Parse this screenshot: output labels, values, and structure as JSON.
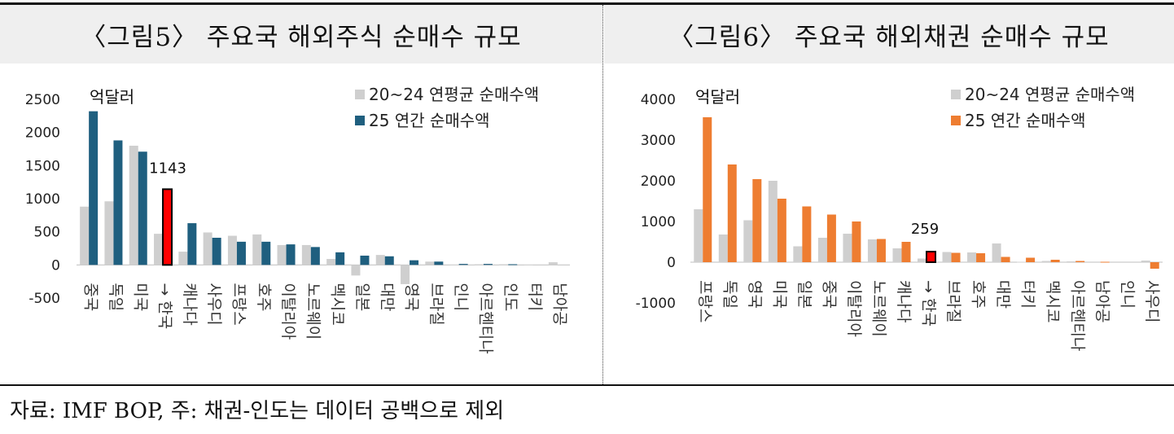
{
  "charts": {
    "left": {
      "title": "〈그림5〉 주요국 해외주식 순매수 규모"
    },
    "right": {
      "title": "〈그림6〉 주요국 해외채권 순매수 규모"
    }
  },
  "footer": {
    "source": "자료: IMF BOP, 주: 채권-인도는 데이터 공백으로 제외"
  },
  "colors": {
    "avg": "#cfcfcf",
    "equity": "#1f5f7f",
    "bond": "#ee7d31",
    "highlight": "#ff0000"
  },
  "chart_data": [
    {
      "type": "bar",
      "title": "〈그림5〉 주요국 해외주식 순매수 규모",
      "unit": "억달러",
      "ylim": [
        -500,
        2500
      ],
      "yticks": [
        -500,
        0,
        500,
        1000,
        1500,
        2000,
        2500
      ],
      "categories": [
        "중국",
        "독일",
        "미국",
        "→ 한국",
        "캐나다",
        "사우디",
        "프랑스",
        "호주",
        "이탈리아",
        "노르웨이",
        "멕시코",
        "일본",
        "대만",
        "영국",
        "브라질",
        "인니",
        "아르헨티나",
        "인도",
        "터키",
        "남아공"
      ],
      "series": [
        {
          "name": "20~24 연평균 순매수액",
          "values": [
            880,
            960,
            1800,
            470,
            200,
            490,
            440,
            460,
            300,
            300,
            90,
            -160,
            150,
            -290,
            50,
            5,
            10,
            10,
            5,
            40
          ]
        },
        {
          "name": "25 연간 순매수액",
          "values": [
            2320,
            1880,
            1710,
            1143,
            630,
            410,
            350,
            350,
            310,
            270,
            190,
            140,
            130,
            70,
            50,
            15,
            15,
            10,
            0,
            0
          ]
        }
      ],
      "highlight_index": 3,
      "data_labels": [
        {
          "category": "→ 한국",
          "value": "1143"
        }
      ],
      "legend": "top-right"
    },
    {
      "type": "bar",
      "title": "〈그림6〉 주요국 해외채권 순매수 규모",
      "unit": "억달러",
      "ylim": [
        -1000,
        4000
      ],
      "yticks": [
        -1000,
        0,
        1000,
        2000,
        3000,
        4000
      ],
      "categories": [
        "프랑스",
        "독일",
        "영국",
        "미국",
        "일본",
        "중국",
        "이탈리아",
        "노르웨이",
        "캐나다",
        "→ 한국",
        "브라질",
        "호주",
        "대만",
        "터키",
        "멕시코",
        "아르헨티나",
        "남아공",
        "인니",
        "사우디"
      ],
      "series": [
        {
          "name": "20~24 연평균 순매수액",
          "values": [
            1300,
            680,
            1030,
            2000,
            390,
            600,
            700,
            560,
            340,
            90,
            250,
            240,
            460,
            10,
            30,
            20,
            0,
            0,
            40
          ]
        },
        {
          "name": "25 연간 순매수액",
          "values": [
            3560,
            2400,
            2040,
            1560,
            1370,
            1170,
            1000,
            570,
            500,
            259,
            230,
            220,
            130,
            110,
            60,
            30,
            10,
            0,
            -160
          ]
        }
      ],
      "highlight_index": 9,
      "data_labels": [
        {
          "category": "→ 한국",
          "value": "259"
        }
      ],
      "legend": "top-right"
    }
  ]
}
